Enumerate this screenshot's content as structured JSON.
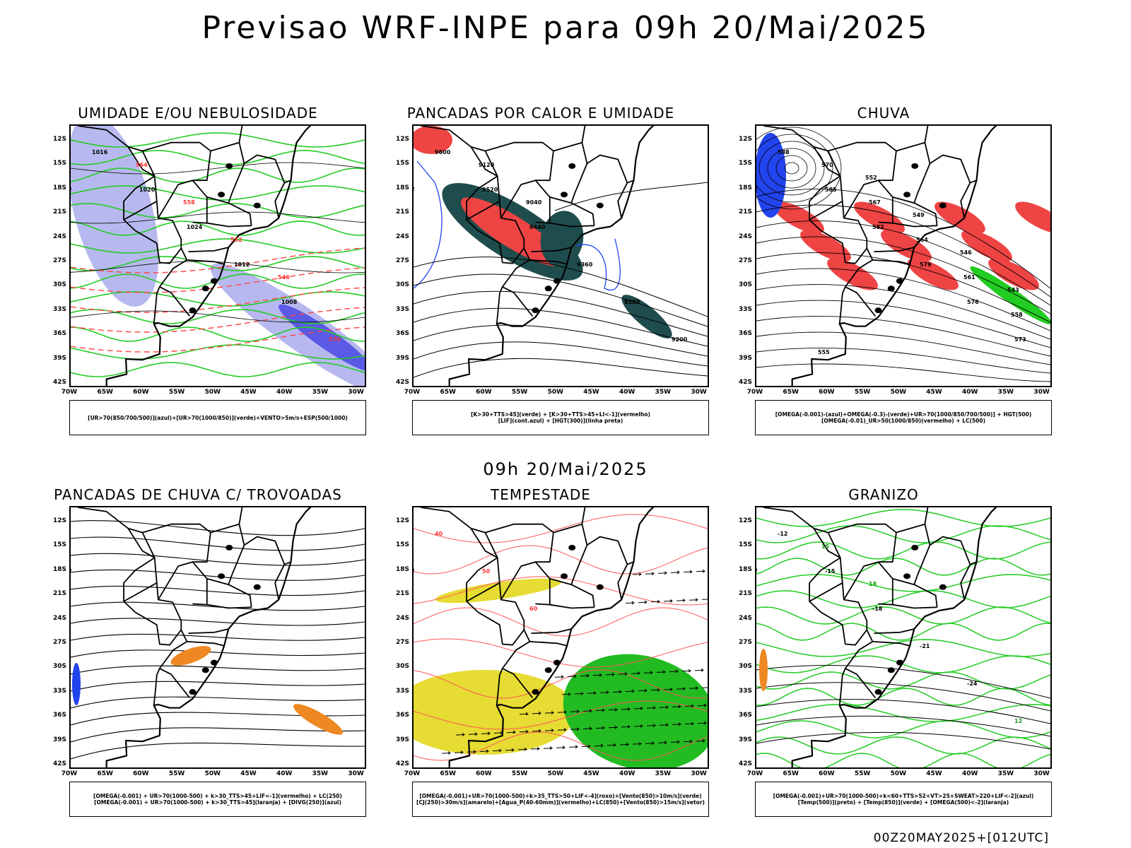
{
  "main_title": "Previsao WRF-INPE  para 09h 20/Mai/2025",
  "mid_title": "09h 20/Mai/2025",
  "footer": "00Z20MAY2025+[012UTC]",
  "lat_labels": [
    "12S",
    "15S",
    "18S",
    "21S",
    "24S",
    "27S",
    "30S",
    "33S",
    "36S",
    "39S",
    "42S"
  ],
  "lon_labels": [
    "70W",
    "65W",
    "60W",
    "55W",
    "50W",
    "45W",
    "40W",
    "35W",
    "30W"
  ],
  "panels": [
    {
      "title": "UMIDADE E/OU NEBULOSIDADE",
      "legend": [
        "[UR>70(850/700/500)](azul)+[UR>70(1000/850)](verde)+VENTO>5m/s+ESP(500/1000)"
      ],
      "contour_labels": [
        "1016",
        "1020",
        "1024",
        "1012",
        "1008",
        "570",
        "564",
        "558",
        "552",
        "546"
      ]
    },
    {
      "title": "PANCADAS POR CALOR E UMIDADE",
      "legend": [
        "[K>30+TTS>45](verde) + [K>30+TTS>45+LI<-1](vermelho)",
        "[LIF](cont.azul) + [HGT(300)](linha preta)"
      ],
      "contour_labels": [
        "9600",
        "9520",
        "9440",
        "9360",
        "9280",
        "9200",
        "9120",
        "9040"
      ]
    },
    {
      "title": "CHUVA",
      "legend": [
        "[OMEGA(-0.001)-(azul)+OMEGA(-0.3)-(verde)+UR>70(1000/850/700/500)] + HGT(500)",
        "[OMEGA(-0.01)_UR>50(1000/850)(vermelho) + LC(500)"
      ],
      "contour_labels": [
        "588",
        "585",
        "582",
        "579",
        "576",
        "573",
        "570",
        "567",
        "564",
        "561",
        "558",
        "555",
        "552",
        "549",
        "546",
        "543"
      ]
    },
    {
      "title": "PANCADAS DE CHUVA C/ TROVOADAS",
      "legend": [
        "[OMEGA(-0.001) + UR>70(1000-500) + k>30_TTS>45+LIF<-1](vermelho) + LC(250)",
        "[OMEGA(-0.001) + UR>70(1000-500) + k>30_TTS>45](laranja) + [DIVG(250)](azul)"
      ],
      "contour_labels": []
    },
    {
      "title": "TEMPESTADE",
      "legend": [
        "[OMEGA(-0.001)+UR>70(1000-500)+k>35_TTS>50+LIF<-4](roxo)+[Vento(850)>10m/s](verde)",
        "[CJ(250)>30m/s](amarelo)+[Agua_P(40-60mm)](vermelho)+LC(850)+[Vento(850)>15m/s](vetor)"
      ],
      "contour_labels": [
        "40",
        "50",
        "60"
      ]
    },
    {
      "title": "GRANIZO",
      "legend": [
        "[OMEGA(-0.001)+UR>70(1000-500)+k<60+TTS>52+VT>25+SWEAT>220+LIF<-2](azul)",
        "[Temp(500)](preto) + [Temp(850)](verde) + [OMEGA(500)<-2](laranja)"
      ],
      "contour_labels": [
        "-12",
        "-15",
        "-18",
        "-21",
        "-24",
        "12",
        "15",
        "18"
      ]
    }
  ]
}
